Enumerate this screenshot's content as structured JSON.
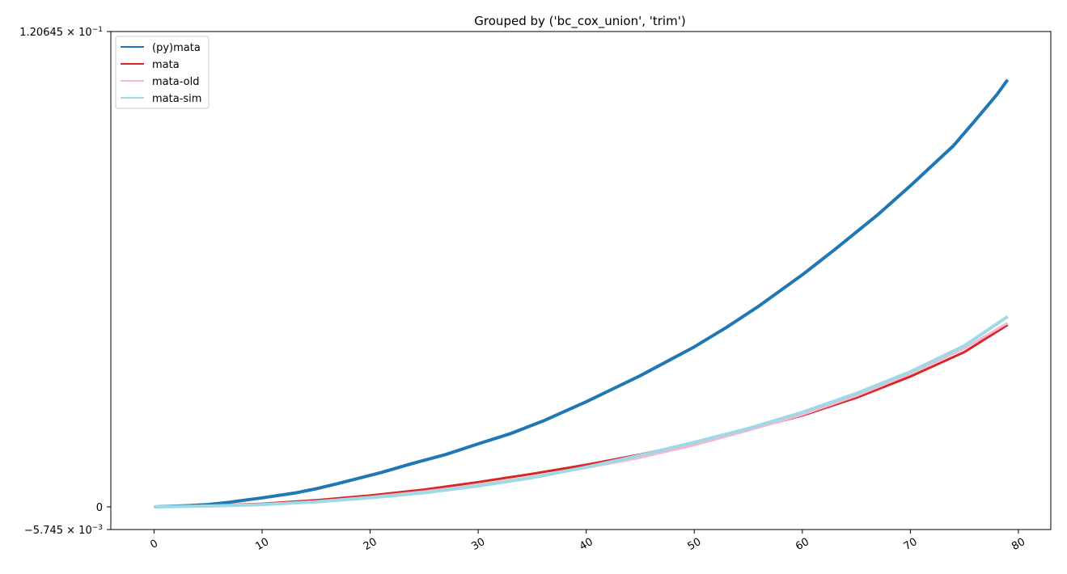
{
  "chart_data": {
    "type": "line",
    "title": "Grouped by ('bc_cox_union', 'trim')",
    "xlabel": "",
    "ylabel": "",
    "xlim": [
      -4,
      83
    ],
    "ylim": [
      -0.005745,
      0.120645
    ],
    "x_ticks": [
      0,
      10,
      20,
      30,
      40,
      50,
      60,
      70,
      80
    ],
    "y_ticks": [
      {
        "value": 0.120645,
        "label": "1.20645 × 10",
        "exp": "−1"
      },
      {
        "value": 0,
        "label": "0",
        "exp": ""
      },
      {
        "value": -0.005745,
        "label": "−5.745 × 10",
        "exp": "−3"
      }
    ],
    "grid": false,
    "legend": {
      "position": "top-left",
      "entries": [
        "(py)mata",
        "mata",
        "mata-old",
        "mata-sim"
      ]
    },
    "series": [
      {
        "name": "(py)mata",
        "color": "#1f77b4",
        "x": [
          0,
          3,
          5,
          7,
          10,
          13,
          15,
          17,
          21,
          24,
          27,
          30,
          33,
          36,
          40,
          45,
          50,
          53,
          56,
          60,
          63,
          67,
          70,
          74,
          76,
          78,
          79
        ],
        "y": [
          0.0,
          0.0003,
          0.0006,
          0.0012,
          0.0023,
          0.0035,
          0.0046,
          0.0059,
          0.0087,
          0.0111,
          0.0133,
          0.016,
          0.0186,
          0.0218,
          0.0267,
          0.0333,
          0.0406,
          0.0456,
          0.051,
          0.0589,
          0.0653,
          0.0742,
          0.0815,
          0.0917,
          0.0981,
          0.1046,
          0.1084
        ]
      },
      {
        "name": "mata",
        "color": "#d62728",
        "x": [
          0,
          5,
          10,
          15,
          20,
          25,
          30,
          35,
          40,
          45,
          50,
          55,
          60,
          65,
          70,
          75,
          79
        ],
        "y": [
          0.0,
          0.0003,
          0.0008,
          0.0017,
          0.0029,
          0.0044,
          0.0063,
          0.0084,
          0.0107,
          0.0133,
          0.0163,
          0.0196,
          0.0232,
          0.0277,
          0.0331,
          0.0393,
          0.0462
        ]
      },
      {
        "name": "mata-old",
        "color": "#f7b6d2",
        "x": [
          0,
          5,
          10,
          15,
          20,
          25,
          30,
          35,
          40,
          45,
          50,
          55,
          60,
          65,
          70,
          75,
          79
        ],
        "y": [
          0.0,
          0.0002,
          0.0006,
          0.0014,
          0.0025,
          0.0039,
          0.0056,
          0.0076,
          0.0099,
          0.0125,
          0.0157,
          0.0194,
          0.0234,
          0.0282,
          0.0338,
          0.0402,
          0.0467
        ]
      },
      {
        "name": "mata-sim",
        "color": "#9edae5",
        "x": [
          0,
          5,
          10,
          15,
          20,
          25,
          30,
          35,
          40,
          45,
          50,
          55,
          60,
          65,
          70,
          75,
          79
        ],
        "y": [
          0.0,
          0.0002,
          0.0006,
          0.0013,
          0.0023,
          0.0036,
          0.0053,
          0.0074,
          0.0101,
          0.0131,
          0.0164,
          0.0199,
          0.024,
          0.0288,
          0.0343,
          0.0409,
          0.0483
        ]
      }
    ]
  }
}
